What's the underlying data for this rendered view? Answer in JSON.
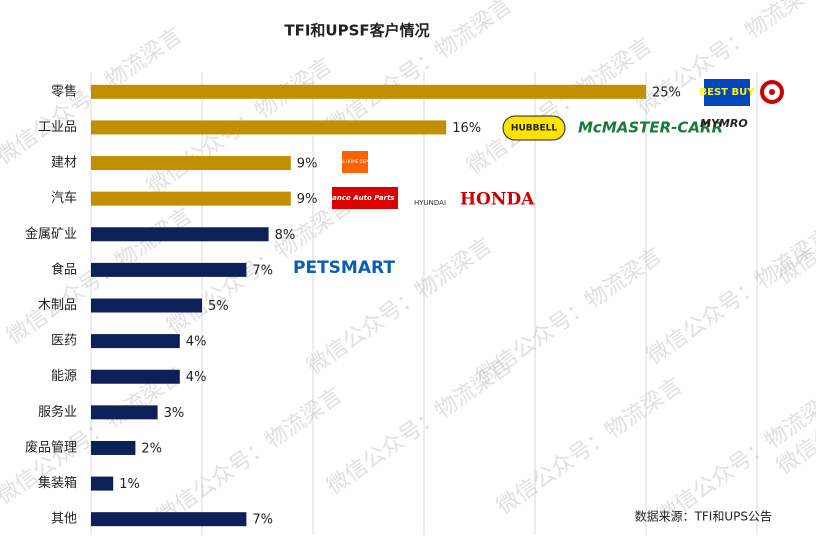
{
  "chart_data": {
    "type": "hbar",
    "title": "TFI和UPSF客户情况",
    "categories": [
      "零售",
      "工业品",
      "建材",
      "汽车",
      "金属矿业",
      "食品",
      "木制品",
      "医药",
      "能源",
      "服务业",
      "废品管理",
      "集装箱",
      "其他"
    ],
    "values": [
      25,
      16,
      9,
      9,
      8,
      7,
      5,
      4,
      4,
      3,
      2,
      1,
      7
    ],
    "value_labels": [
      "25%",
      "16%",
      "9%",
      "9%",
      "8%",
      "7%",
      "5%",
      "4%",
      "4%",
      "3%",
      "2%",
      "1%",
      "7%"
    ],
    "colors": [
      "#c09000",
      "#c09000",
      "#c09000",
      "#c09000",
      "#0d2158",
      "#0d2158",
      "#0d2158",
      "#0d2158",
      "#0d2158",
      "#0d2158",
      "#0d2158",
      "#0d2158",
      "#0d2158"
    ],
    "xlim": [
      0,
      30
    ],
    "xticks": [
      0,
      5,
      10,
      15,
      20,
      25,
      30
    ],
    "grid": true,
    "source": "数据来源：TFI和UPS公告",
    "watermark": "微信公众号：物流梁言",
    "logos": [
      "BEST BUY",
      "HUBBELL",
      "McMASTER-CARR",
      "MYMRO",
      "THE HOME DEPOT",
      "Advance Auto Parts",
      "HYUNDAI",
      "HONDA",
      "PETSMART"
    ]
  }
}
